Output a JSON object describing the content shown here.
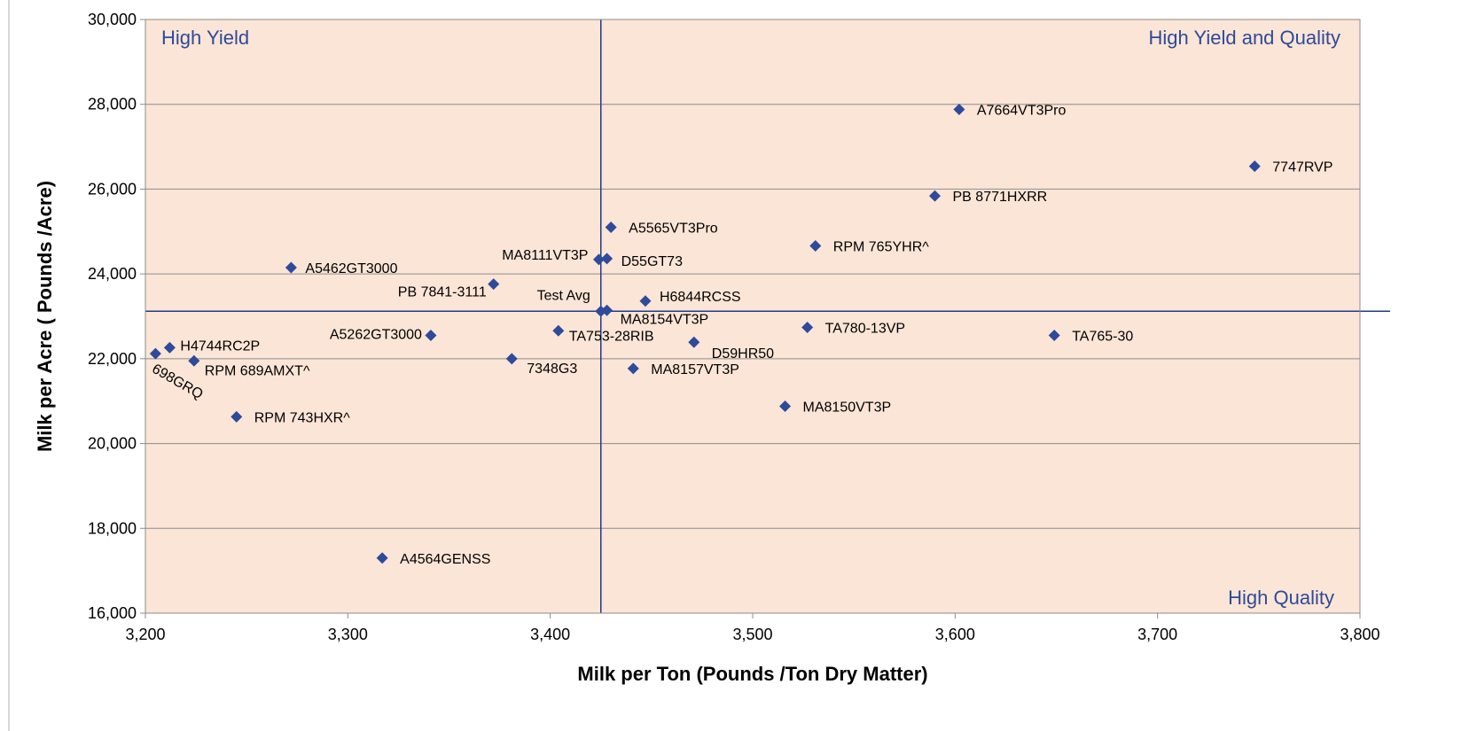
{
  "chart_data": {
    "type": "scatter",
    "title": "",
    "xlabel": "Milk per Ton (Pounds /Ton Dry Matter)",
    "ylabel": "Milk per Acre ( Pounds /Acre)",
    "xlim": [
      3200,
      3800
    ],
    "ylim": [
      16000,
      30000
    ],
    "x_ticks": [
      "3,200",
      "3,300",
      "3,400",
      "3,500",
      "3,600",
      "3,700",
      "3,800"
    ],
    "y_ticks": [
      "16,000",
      "18,000",
      "20,000",
      "22,000",
      "24,000",
      "26,000",
      "28,000",
      "30,000"
    ],
    "grid": "horizontal",
    "reference_lines": {
      "x": 3425,
      "y": 23120
    },
    "quadrant_labels": {
      "top_left": "High Yield",
      "top_right": "High Yield and Quality",
      "bottom_right": "High Quality"
    },
    "marker_color": "#2e4a9a",
    "plot_background": "#fbe5d6",
    "points": [
      {
        "label": "A7664VT3Pro",
        "x": 3602,
        "y": 27880
      },
      {
        "label": "7747RVP",
        "x": 3748,
        "y": 26540
      },
      {
        "label": "PB 8771HXRR",
        "x": 3590,
        "y": 25840
      },
      {
        "label": "A5565VT3Pro",
        "x": 3430,
        "y": 25100
      },
      {
        "label": "RPM 765YHR^",
        "x": 3531,
        "y": 24660
      },
      {
        "label": "A5462GT3000",
        "x": 3272,
        "y": 24150
      },
      {
        "label": "MA8111VT3P",
        "x": 3424,
        "y": 24340
      },
      {
        "label": "D55GT73",
        "x": 3428,
        "y": 24360
      },
      {
        "label": "PB 7841-3111",
        "x": 3372,
        "y": 23760
      },
      {
        "label": "H6844RCSS",
        "x": 3447,
        "y": 23360
      },
      {
        "label": "Test Avg",
        "x": 3425,
        "y": 23120
      },
      {
        "label": "MA8154VT3P",
        "x": 3428,
        "y": 23140
      },
      {
        "label": "TA780-13VP",
        "x": 3527,
        "y": 22740
      },
      {
        "label": "TA753-28RIB",
        "x": 3404,
        "y": 22660
      },
      {
        "label": "A5262GT3000",
        "x": 3341,
        "y": 22550
      },
      {
        "label": "TA765-30",
        "x": 3649,
        "y": 22550
      },
      {
        "label": "D59HR50",
        "x": 3471,
        "y": 22390
      },
      {
        "label": "H4744RC2P",
        "x": 3212,
        "y": 22260
      },
      {
        "label": "698GRQ",
        "x": 3205,
        "y": 22120
      },
      {
        "label": "RPM 689AMXT^",
        "x": 3224,
        "y": 21950
      },
      {
        "label": "7348G3",
        "x": 3381,
        "y": 22000
      },
      {
        "label": "MA8157VT3P",
        "x": 3441,
        "y": 21770
      },
      {
        "label": "MA8150VT3P",
        "x": 3516,
        "y": 20880
      },
      {
        "label": "RPM 743HXR^",
        "x": 3245,
        "y": 20630
      },
      {
        "label": "A4564GENSS",
        "x": 3317,
        "y": 17300
      }
    ]
  }
}
